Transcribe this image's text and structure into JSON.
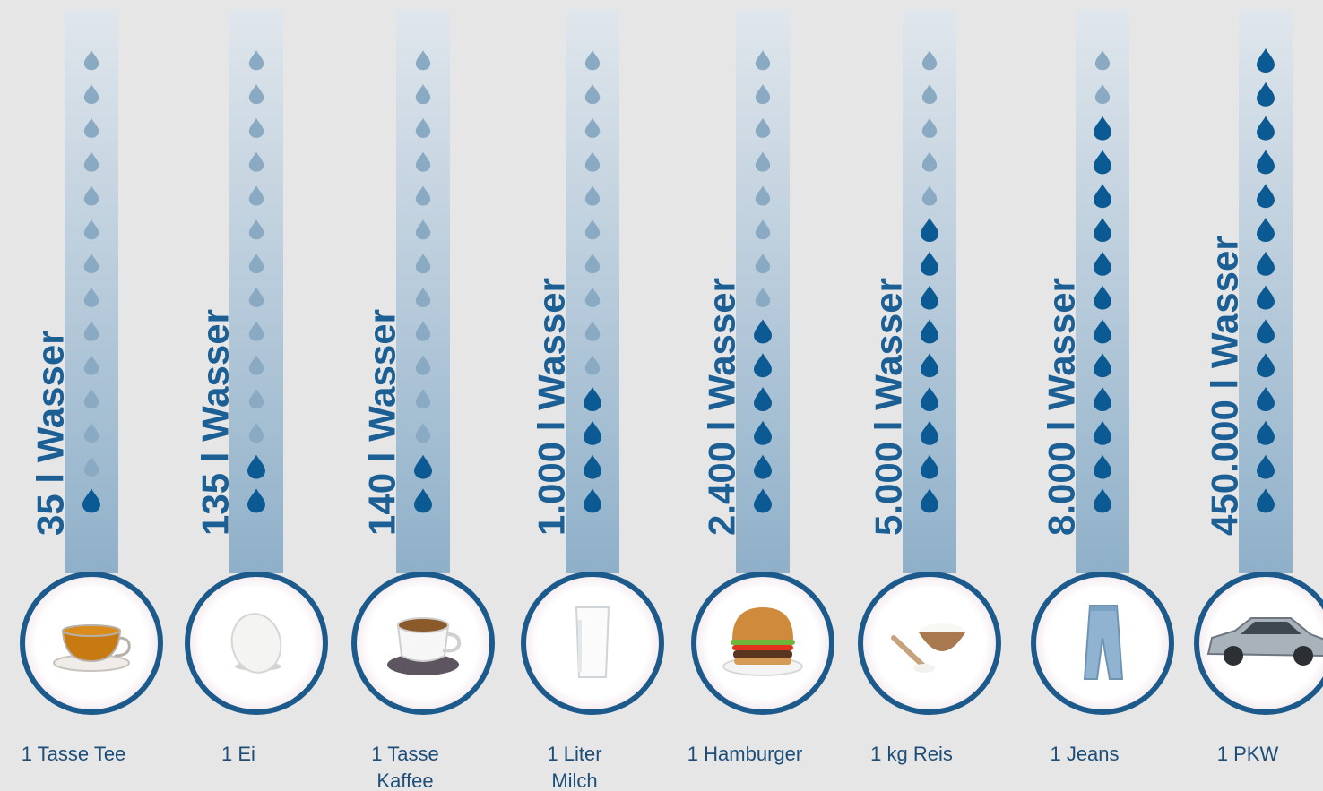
{
  "chart_data": {
    "type": "bar",
    "title": "",
    "unit": "l Wasser",
    "drops_total": 14,
    "colors": {
      "background": "#e6e6e6",
      "column_top": "#e0e6ec",
      "column_bottom": "#8fb0c9",
      "drop_filled": "#0c5a93",
      "drop_empty": "#8aa9c2",
      "circle_ring": "#1d5a8c",
      "value_text": "#1b5f94",
      "label_text": "#1d4e78"
    },
    "items": [
      {
        "category": "1 Tasse Tee",
        "label_lines": [
          "1 Tasse Tee"
        ],
        "value": 35,
        "value_label": "35 l Wasser",
        "filled_drops": 1,
        "icon": "tea-cup-icon"
      },
      {
        "category": "1 Ei",
        "label_lines": [
          "1 Ei"
        ],
        "value": 135,
        "value_label": "135 l Wasser",
        "filled_drops": 2,
        "icon": "egg-icon"
      },
      {
        "category": "1 Tasse Kaffee",
        "label_lines": [
          "1 Tasse",
          "Kaffee"
        ],
        "value": 140,
        "value_label": "140 l Wasser",
        "filled_drops": 2,
        "icon": "coffee-cup-icon"
      },
      {
        "category": "1 Liter Milch",
        "label_lines": [
          "1 Liter",
          "Milch"
        ],
        "value": 1000,
        "value_label": "1.000 l Wasser",
        "filled_drops": 4,
        "icon": "milk-glass-icon"
      },
      {
        "category": "1 Hamburger",
        "label_lines": [
          "1 Hamburger"
        ],
        "value": 2400,
        "value_label": "2.400 l Wasser",
        "filled_drops": 6,
        "icon": "hamburger-icon"
      },
      {
        "category": "1 kg Reis",
        "label_lines": [
          "1 kg Reis"
        ],
        "value": 5000,
        "value_label": "5.000 l Wasser",
        "filled_drops": 9,
        "icon": "rice-bowl-icon"
      },
      {
        "category": "1 Jeans",
        "label_lines": [
          "1 Jeans"
        ],
        "value": 8000,
        "value_label": "8.000 l Wasser",
        "filled_drops": 12,
        "icon": "jeans-icon"
      },
      {
        "category": "1 PKW",
        "label_lines": [
          "1 PKW"
        ],
        "value": 450000,
        "value_label": "450.000 l Wasser",
        "filled_drops": 14,
        "icon": "car-icon"
      }
    ]
  }
}
